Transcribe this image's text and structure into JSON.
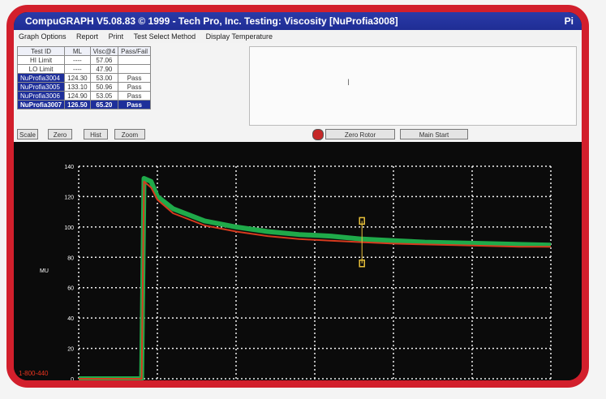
{
  "window": {
    "title": "CompuGRAPH V5.08.83 © 1999 - Tech Pro, Inc.    Testing: Viscosity [NuProfia3008]",
    "title_extra": "Pi"
  },
  "menu": [
    "Graph Options",
    "Report",
    "Print",
    "Test Select Method",
    "Display Temperature"
  ],
  "table": {
    "headers": [
      "Test ID",
      "ML",
      "Visc@4",
      "Pass/Fail"
    ],
    "limit_rows": [
      {
        "label": "HI Limit",
        "ml": "----",
        "visc": "57.06",
        "pf": ""
      },
      {
        "label": "LO Limit",
        "ml": "----",
        "visc": "47.90",
        "pf": ""
      }
    ],
    "rows": [
      {
        "id": "NuProfia3004",
        "ml": "124.30",
        "visc": "53.00",
        "pf": "Pass"
      },
      {
        "id": "NuProfia3005",
        "ml": "133.10",
        "visc": "50.96",
        "pf": "Pass"
      },
      {
        "id": "NuProfia3006",
        "ml": "124.90",
        "visc": "53.05",
        "pf": "Pass"
      },
      {
        "id": "NuProfia3007",
        "ml": "126.50",
        "visc": "65.20",
        "pf": "Pass"
      }
    ]
  },
  "buttons": {
    "b1": "Scale",
    "b2": "Zero",
    "b3": "Hist",
    "b4": "Zoom",
    "zero_rotor": "Zero Rotor",
    "main_start": "Main Start"
  },
  "chart_data": {
    "type": "line",
    "ylabel": "MU",
    "ylim": [
      0,
      140
    ],
    "y_ticks": [
      "140",
      "120",
      "100",
      "80",
      "60",
      "40",
      "20",
      "0"
    ],
    "x_gridlines": 7,
    "grid": true,
    "colors": {
      "series_a": "#1faa4a",
      "series_b": "#d63b1f",
      "series_c": "#e9c13a",
      "grid": "#f0f0f0"
    },
    "series": [
      {
        "color": "#1faa4a",
        "x": [
          0,
          1,
          2,
          3,
          4,
          4.15,
          4.6,
          5,
          6,
          8,
          10,
          12,
          14,
          16,
          18,
          20,
          22,
          24,
          26,
          28,
          30
        ],
        "y": [
          0,
          0,
          0,
          0,
          0,
          132,
          130,
          120,
          112,
          104,
          100,
          97,
          95,
          94,
          92,
          91,
          90,
          89.5,
          89,
          88.5,
          88
        ]
      },
      {
        "color": "#d63b1f",
        "x": [
          0,
          1,
          2,
          3,
          4,
          4.15,
          4.6,
          5,
          6,
          8,
          10,
          12,
          14,
          16,
          18,
          20,
          22,
          24,
          26,
          28,
          30
        ],
        "y": [
          0,
          0,
          0,
          0,
          0,
          130,
          126,
          118,
          109,
          101,
          97,
          94,
          92,
          91,
          90,
          89,
          88.5,
          88,
          87.5,
          87,
          87
        ]
      }
    ],
    "xlim": [
      0,
      30
    ],
    "markers": [
      {
        "x": 18,
        "y": 104
      },
      {
        "x": 18,
        "y": 76
      }
    ]
  },
  "stamp": "1-800-440"
}
